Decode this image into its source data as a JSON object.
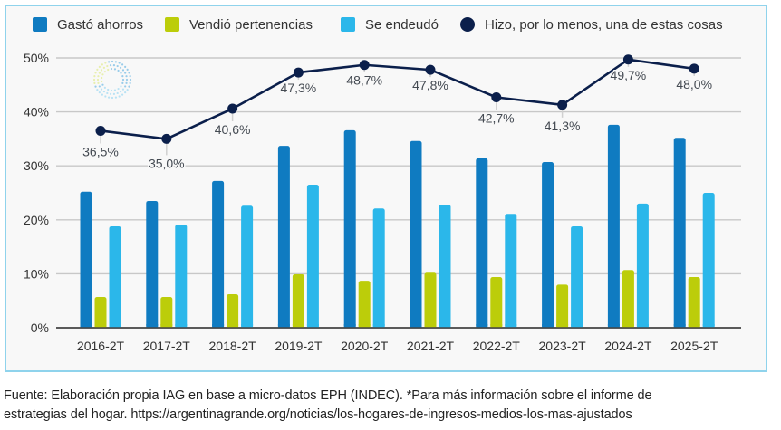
{
  "chart_data": {
    "type": "bar",
    "title": "",
    "xlabel": "",
    "ylabel": "",
    "ylim": [
      0,
      50
    ],
    "yticks": [
      "0%",
      "10%",
      "20%",
      "30%",
      "40%",
      "50%"
    ],
    "ytick_values": [
      0,
      10,
      20,
      30,
      40,
      50
    ],
    "grid": true,
    "legend_position": "top",
    "categories": [
      "2016-2T",
      "2017-2T",
      "2018-2T",
      "2019-2T",
      "2020-2T",
      "2021-2T",
      "2022-2T",
      "2023-2T",
      "2024-2T",
      "2025-2T"
    ],
    "series": [
      {
        "name": "Gastó ahorros",
        "kind": "bar",
        "color": "#0f7bc1",
        "values": [
          25.2,
          23.5,
          27.2,
          33.7,
          36.6,
          34.6,
          31.4,
          30.7,
          37.6,
          35.2
        ]
      },
      {
        "name": "Vendió pertenencias",
        "kind": "bar",
        "color": "#bccd0a",
        "values": [
          5.7,
          5.7,
          6.2,
          9.9,
          8.7,
          10.2,
          9.4,
          8.0,
          10.7,
          9.4
        ]
      },
      {
        "name": "Se endeudó",
        "kind": "bar",
        "color": "#2bb7ea",
        "values": [
          18.8,
          19.1,
          22.6,
          26.5,
          22.1,
          22.8,
          21.1,
          18.8,
          23.0,
          25.0
        ]
      },
      {
        "name": "Hizo, por lo menos, una de estas cosas",
        "kind": "line",
        "color": "#0b1f4b",
        "values": [
          36.5,
          35.0,
          40.6,
          47.3,
          48.7,
          47.8,
          42.7,
          41.3,
          49.7,
          48.0
        ],
        "labels": [
          "36,5%",
          "35,0%",
          "40,6%",
          "47,3%",
          "48,7%",
          "47,8%",
          "42,7%",
          "41,3%",
          "49,7%",
          "48,0%"
        ]
      }
    ]
  },
  "caption": {
    "line1": "Fuente: Elaboración propia IAG en base a micro-datos EPH (INDEC). *Para más información sobre el informe de",
    "line2": "estrategias del hogar. https://argentinagrande.org/noticias/los-hogares-de-ingresos-medios-los-mas-ajustados"
  },
  "logo": {
    "icon": "dotted-circle-logo-icon"
  }
}
